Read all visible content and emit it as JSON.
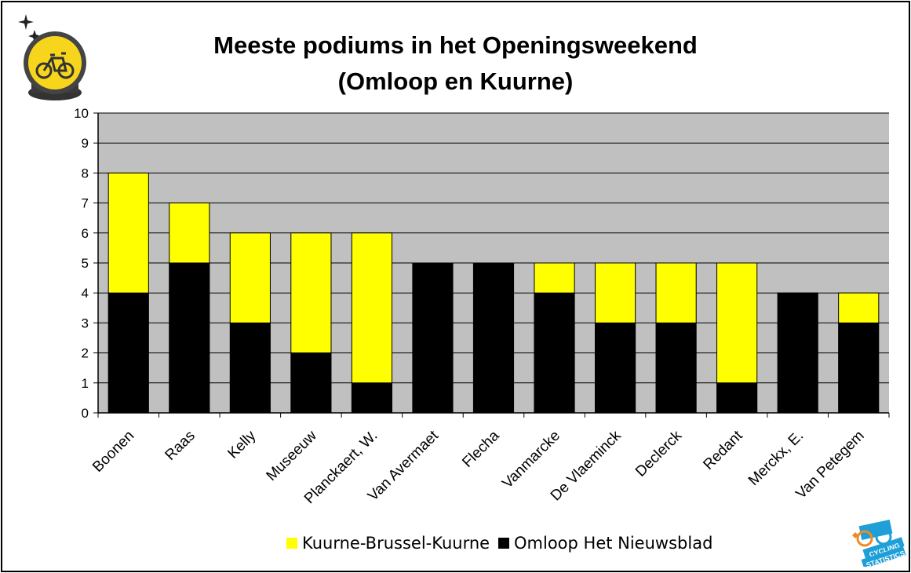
{
  "colors": {
    "plot_bg": "#c0c0c0",
    "kuurne": "#ffff00",
    "omloop": "#000000",
    "grid": "#000000"
  },
  "icons": {
    "top_left": "crystal-ball-bicycle-icon",
    "bottom_right": "cycling-statistics-logo"
  },
  "logo": {
    "text_line1": "CYCLING",
    "text_line2": "STATISTICS"
  },
  "chart_data": {
    "type": "bar",
    "stacked": true,
    "title": "Meeste podiums in het Openingsweekend",
    "subtitle": "(Omloop en Kuurne)",
    "xlabel": "",
    "ylabel": "",
    "ylim": [
      0,
      10
    ],
    "yticks": [
      "0",
      "1",
      "2",
      "3",
      "4",
      "5",
      "6",
      "7",
      "8",
      "9",
      "10"
    ],
    "grid": true,
    "legend_position": "bottom",
    "categories": [
      "Boonen",
      "Raas",
      "Kelly",
      "Museeuw",
      "Planckaert, W.",
      "Van Avermaet",
      "Flecha",
      "Vanmarcke",
      "De Vlaeminck",
      "Declerck",
      "Redant",
      "Merckx, E.",
      "Van Petegem"
    ],
    "series": [
      {
        "name": "Omloop Het Nieuwsblad",
        "color": "#000000",
        "values": [
          4,
          5,
          3,
          2,
          1,
          5,
          5,
          4,
          3,
          3,
          1,
          4,
          3
        ]
      },
      {
        "name": "Kuurne-Brussel-Kuurne",
        "color": "#ffff00",
        "values": [
          4,
          2,
          3,
          4,
          5,
          0,
          0,
          1,
          2,
          2,
          4,
          0,
          1
        ]
      }
    ],
    "legend_order": [
      "Kuurne-Brussel-Kuurne",
      "Omloop Het Nieuwsblad"
    ]
  }
}
